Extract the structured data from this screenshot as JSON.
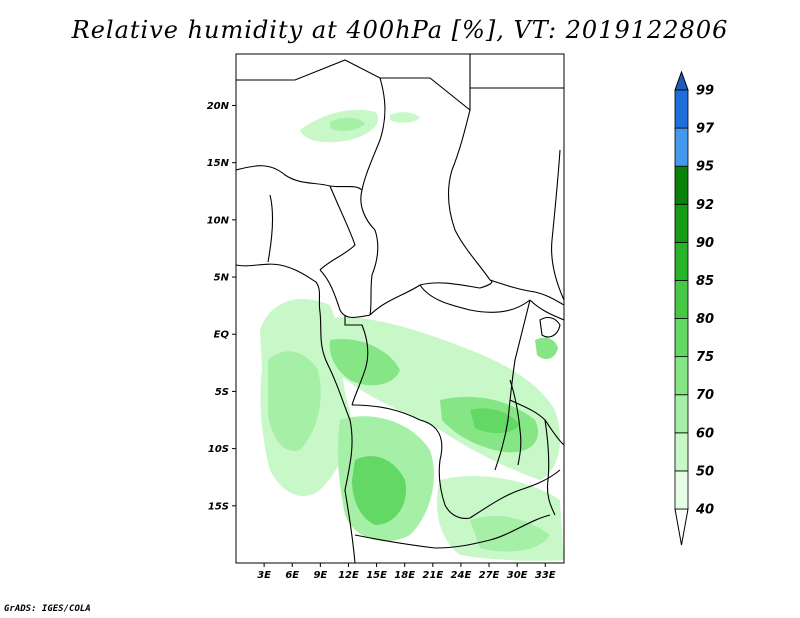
{
  "title": "Relative humidity at 400hPa [%], VT: 2019122806",
  "footer": "GrADS: IGES/COLA",
  "map": {
    "lon_range": [
      0,
      35
    ],
    "lat_range": [
      -20,
      24.5
    ],
    "lat_labels": [
      "20N",
      "15N",
      "10N",
      "5N",
      "EQ",
      "5S",
      "10S",
      "15S"
    ],
    "lat_values": [
      20,
      15,
      10,
      5,
      0,
      -5,
      -10,
      -15
    ],
    "lon_labels": [
      "3E",
      "6E",
      "9E",
      "12E",
      "15E",
      "18E",
      "21E",
      "24E",
      "27E",
      "30E",
      "33E"
    ],
    "lon_values": [
      3,
      6,
      9,
      12,
      15,
      18,
      21,
      24,
      27,
      30,
      33
    ]
  },
  "colorbar": {
    "levels": [
      "40",
      "50",
      "60",
      "70",
      "75",
      "80",
      "85",
      "90",
      "92",
      "95",
      "97",
      "99"
    ],
    "colors": [
      "#ffffff",
      "#e6fde6",
      "#c8f7c8",
      "#a6efa6",
      "#86e686",
      "#64d864",
      "#46c846",
      "#28b428",
      "#149c14",
      "#0a820a",
      "#4499ee",
      "#1e6edc",
      "#1f5bbf"
    ],
    "max_arrow_color": "#1f5bbf",
    "min_arrow_color": "#ffffff"
  }
}
